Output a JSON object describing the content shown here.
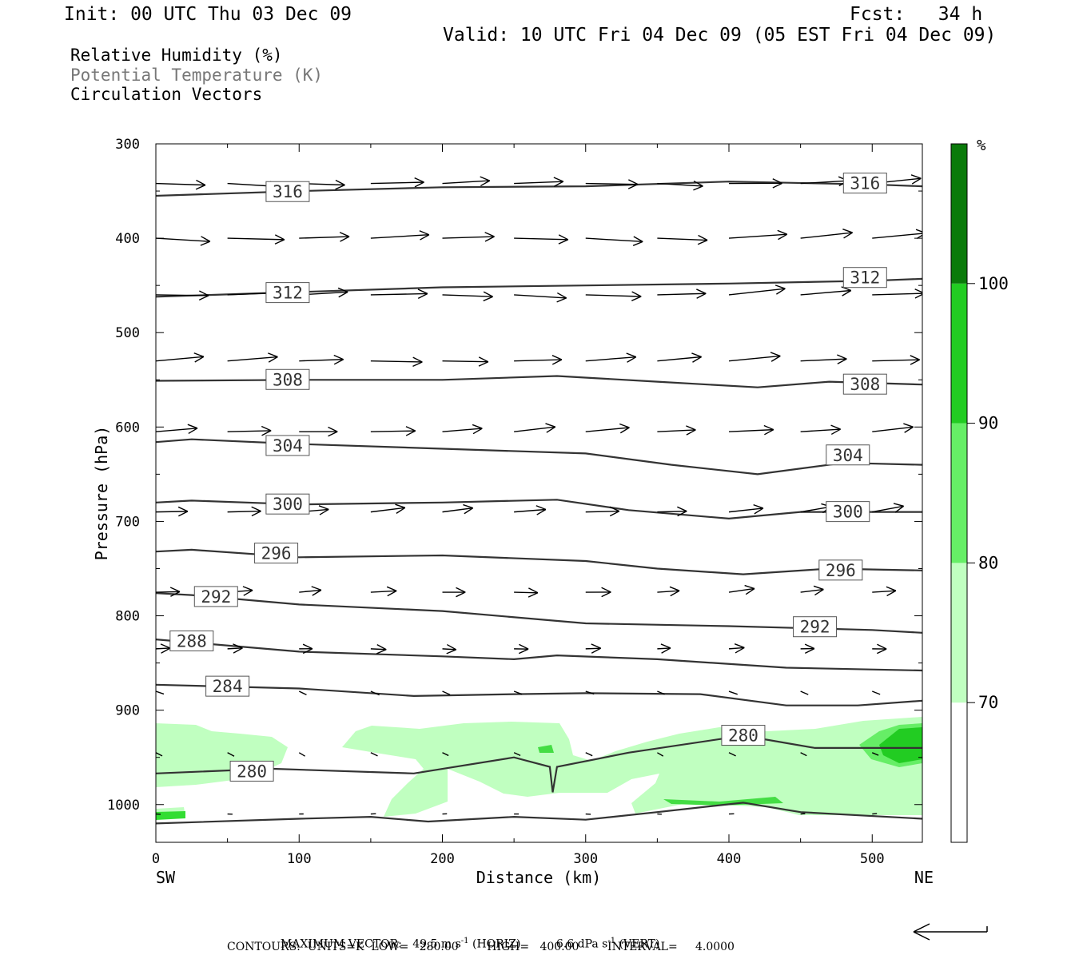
{
  "header": {
    "init": "Init: 00 UTC Thu 03 Dec 09",
    "fcst": "Fcst:   34 h",
    "valid": "Valid: 10 UTC Fri 04 Dec 09 (05 EST Fri 04 Dec 09)"
  },
  "legend": {
    "rh": "Relative Humidity (%)",
    "theta": "Potential Temperature (K)",
    "vectors": "Circulation Vectors"
  },
  "colors": {
    "rh_70_80": "#c0ffc0",
    "rh_80_90": "#66ee66",
    "rh_90_100": "#22cc22",
    "rh_100_plus": "#0a7a0a",
    "contour": "#333333"
  },
  "chart_data": {
    "type": "cross-section",
    "xlabel": "Distance (km)",
    "ylabel": "Pressure (hPa)",
    "xlim": [
      0,
      535
    ],
    "ylim": [
      1040,
      300
    ],
    "x_ticks": [
      "0",
      "100",
      "200",
      "300",
      "400",
      "500"
    ],
    "y_ticks": [
      "300",
      "400",
      "500",
      "600",
      "700",
      "800",
      "900",
      "1000"
    ],
    "x_tick_values": [
      0,
      100,
      200,
      300,
      400,
      500
    ],
    "y_tick_values": [
      300,
      400,
      500,
      600,
      700,
      800,
      900,
      1000
    ],
    "endpoints": {
      "left": "SW",
      "right": "NE"
    },
    "colorbar": {
      "unit": "%",
      "levels": [
        "70",
        "80",
        "90",
        "100"
      ],
      "colors": [
        "#ffffff",
        "#c0ffc0",
        "#66ee66",
        "#22cc22",
        "#0a7a0a"
      ]
    },
    "theta_contours": [
      {
        "value": 316,
        "pts": [
          [
            0,
            355
          ],
          [
            100,
            350
          ],
          [
            200,
            346
          ],
          [
            300,
            345
          ],
          [
            400,
            340
          ],
          [
            500,
            343
          ],
          [
            535,
            345
          ]
        ],
        "labels": [
          [
            92,
            351
          ],
          [
            495,
            342
          ]
        ]
      },
      {
        "value": 312,
        "pts": [
          [
            0,
            462
          ],
          [
            100,
            457
          ],
          [
            200,
            452
          ],
          [
            300,
            450
          ],
          [
            400,
            448
          ],
          [
            500,
            445
          ],
          [
            535,
            443
          ]
        ],
        "labels": [
          [
            92,
            458
          ],
          [
            495,
            442
          ]
        ]
      },
      {
        "value": 308,
        "pts": [
          [
            0,
            551
          ],
          [
            100,
            550
          ],
          [
            200,
            550
          ],
          [
            280,
            546
          ],
          [
            350,
            552
          ],
          [
            420,
            558
          ],
          [
            470,
            552
          ],
          [
            535,
            555
          ]
        ],
        "labels": [
          [
            92,
            550
          ],
          [
            495,
            555
          ]
        ]
      },
      {
        "value": 304,
        "pts": [
          [
            0,
            616
          ],
          [
            25,
            613
          ],
          [
            100,
            618
          ],
          [
            200,
            623
          ],
          [
            300,
            628
          ],
          [
            360,
            640
          ],
          [
            420,
            650
          ],
          [
            480,
            638
          ],
          [
            535,
            640
          ]
        ],
        "labels": [
          [
            92,
            620
          ],
          [
            483,
            630
          ]
        ]
      },
      {
        "value": 300,
        "pts": [
          [
            0,
            680
          ],
          [
            25,
            678
          ],
          [
            100,
            682
          ],
          [
            200,
            680
          ],
          [
            280,
            677
          ],
          [
            330,
            688
          ],
          [
            400,
            697
          ],
          [
            450,
            690
          ],
          [
            535,
            690
          ]
        ],
        "labels": [
          [
            92,
            682
          ],
          [
            483,
            690
          ]
        ]
      },
      {
        "value": 296,
        "pts": [
          [
            0,
            732
          ],
          [
            25,
            730
          ],
          [
            100,
            738
          ],
          [
            200,
            736
          ],
          [
            300,
            742
          ],
          [
            350,
            750
          ],
          [
            410,
            756
          ],
          [
            470,
            750
          ],
          [
            535,
            752
          ]
        ],
        "labels": [
          [
            84,
            734
          ],
          [
            478,
            752
          ]
        ]
      },
      {
        "value": 292,
        "pts": [
          [
            0,
            776
          ],
          [
            25,
            778
          ],
          [
            100,
            788
          ],
          [
            200,
            795
          ],
          [
            300,
            808
          ],
          [
            400,
            811
          ],
          [
            500,
            815
          ],
          [
            535,
            818
          ]
        ],
        "labels": [
          [
            42,
            780
          ],
          [
            460,
            812
          ]
        ]
      },
      {
        "value": 288,
        "pts": [
          [
            0,
            825
          ],
          [
            100,
            838
          ],
          [
            200,
            843
          ],
          [
            250,
            846
          ],
          [
            280,
            842
          ],
          [
            350,
            846
          ],
          [
            440,
            855
          ],
          [
            535,
            858
          ]
        ],
        "labels": [
          [
            25,
            827
          ]
        ]
      },
      {
        "value": 284,
        "pts": [
          [
            0,
            873
          ],
          [
            100,
            877
          ],
          [
            180,
            885
          ],
          [
            250,
            883
          ],
          [
            300,
            882
          ],
          [
            380,
            883
          ],
          [
            440,
            895
          ],
          [
            490,
            895
          ],
          [
            535,
            890
          ]
        ],
        "labels": [
          [
            50,
            875
          ]
        ]
      },
      {
        "value": 280,
        "pts": [
          [
            0,
            967
          ],
          [
            80,
            962
          ],
          [
            180,
            967
          ],
          [
            250,
            950
          ],
          [
            275,
            960
          ],
          [
            277,
            987
          ],
          [
            280,
            960
          ],
          [
            330,
            945
          ],
          [
            410,
            927
          ],
          [
            460,
            940
          ],
          [
            535,
            940
          ]
        ],
        "labels": [
          [
            67,
            965
          ],
          [
            410,
            927
          ]
        ]
      },
      {
        "value": 280,
        "pts": [
          [
            0,
            1020
          ],
          [
            100,
            1015
          ],
          [
            150,
            1013
          ],
          [
            190,
            1018
          ],
          [
            250,
            1013
          ],
          [
            300,
            1016
          ],
          [
            350,
            1008
          ],
          [
            410,
            998
          ],
          [
            450,
            1008
          ],
          [
            535,
            1015
          ]
        ],
        "labels": []
      }
    ]
  },
  "footer": {
    "maxvec_label": "MAXIMUM VECTOR:",
    "maxvec_horiz": "49.5 m s",
    "maxvec_horiz_exp": "-1",
    "maxvec_horiz_tag": " (HORIZ)",
    "maxvec_vert": "6.6 dPa s",
    "maxvec_vert_exp": "-1",
    "maxvec_vert_tag": " (VERT)",
    "contours": "CONTOURS:  UNITS=K  LOW=   280.00        HIGH=   400.00        INTERVAL=     4.0000"
  }
}
